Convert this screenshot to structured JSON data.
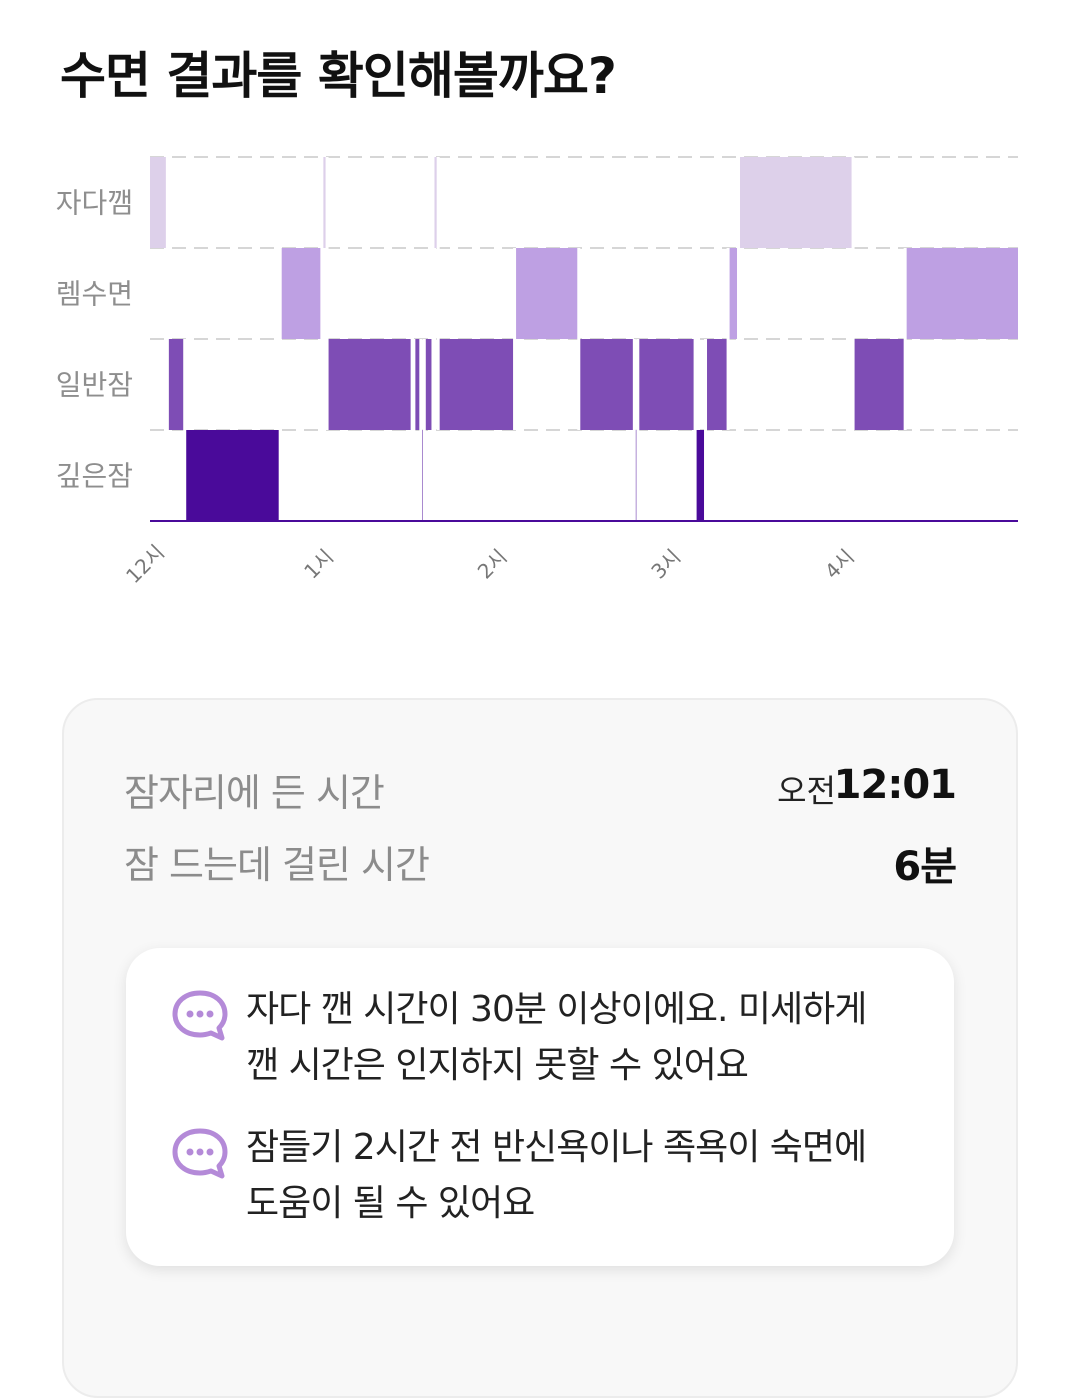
{
  "title": "수면 결과를 확인해볼까요?",
  "chart_data": {
    "type": "hypnogram",
    "stages": [
      "자다깸",
      "렘수면",
      "일반잠",
      "깊은잠"
    ],
    "x_ticks": [
      "12시",
      "1시",
      "2시",
      "3시",
      "4시"
    ],
    "colors": {
      "자다깸": "#ddd0ea",
      "렘수면": "#bea0e3",
      "일반잠": "#7e4db5",
      "깊은잠": "#4a0a9a"
    },
    "range_hours": [
      0,
      5.0
    ],
    "segments": [
      {
        "stage": "자다깸",
        "start": 0.0,
        "end": 0.1
      },
      {
        "stage": "일반잠",
        "start": 0.1,
        "end": 0.2
      },
      {
        "stage": "깊은잠",
        "start": 0.2,
        "end": 0.75
      },
      {
        "stage": "렘수면",
        "start": 0.75,
        "end": 0.99
      },
      {
        "stage": "자다깸",
        "start": 0.99,
        "end": 1.02
      },
      {
        "stage": "일반잠",
        "start": 1.02,
        "end": 1.51
      },
      {
        "stage": "깊은잠",
        "start": 1.51,
        "end": 1.52
      },
      {
        "stage": "일반잠",
        "start": 1.52,
        "end": 1.56
      },
      {
        "stage": "깊은잠",
        "start": 1.56,
        "end": 1.58
      },
      {
        "stage": "일반잠",
        "start": 1.58,
        "end": 1.63
      },
      {
        "stage": "자다깸",
        "start": 1.63,
        "end": 1.66
      },
      {
        "stage": "일반잠",
        "start": 1.66,
        "end": 2.1
      },
      {
        "stage": "렘수면",
        "start": 2.1,
        "end": 2.47
      },
      {
        "stage": "일반잠",
        "start": 2.47,
        "end": 2.79
      },
      {
        "stage": "깊은잠",
        "start": 2.79,
        "end": 2.81
      },
      {
        "stage": "일반잠",
        "start": 2.81,
        "end": 3.14
      },
      {
        "stage": "깊은잠",
        "start": 3.14,
        "end": 3.2
      },
      {
        "stage": "일반잠",
        "start": 3.2,
        "end": 3.33
      },
      {
        "stage": "렘수면",
        "start": 3.33,
        "end": 3.39
      },
      {
        "stage": "자다깸",
        "start": 3.39,
        "end": 4.05
      },
      {
        "stage": "일반잠",
        "start": 4.05,
        "end": 4.35
      },
      {
        "stage": "렘수면",
        "start": 4.35,
        "end": 5.0
      }
    ]
  },
  "summary": {
    "bedtime_label": "잠자리에 든 시간",
    "bedtime_prefix": "오전",
    "bedtime_value": "12:01",
    "latency_label": "잠 드는데 걸린 시간",
    "latency_value": "6분"
  },
  "tips": [
    {
      "icon": "chat-bubble-icon",
      "line1": "자다 깬 시간이 30분 이상이에요. 미세하게",
      "line2": "깬 시간은 인지하지 못할 수 있어요"
    },
    {
      "icon": "chat-bubble-icon",
      "line1": "잠들기 2시간 전 반신욕이나 족욕이 숙면에",
      "line2": "도움이 될 수 있어요"
    }
  ]
}
